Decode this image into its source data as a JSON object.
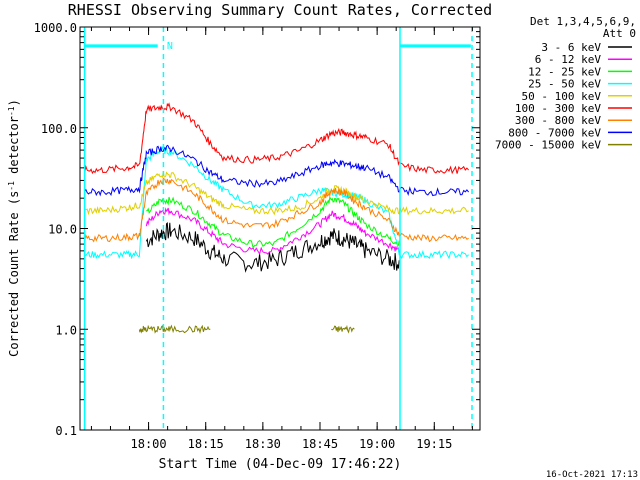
{
  "chart_data": {
    "type": "line",
    "title": "RHESSI Observing Summary Count Rates, Corrected",
    "ylabel": "Corrected Count Rate (s⁻¹ detector⁻¹)",
    "xlabel": "Start Time (04-Dec-09 17:46:22)",
    "timestamp": "16-Oct-2021 17:13",
    "yscale": "log",
    "ylim": [
      0.1,
      1000
    ],
    "xlim": [
      17.7,
      19.45
    ],
    "y_ticks": [
      {
        "v": 1000,
        "label": "1000.0"
      },
      {
        "v": 100,
        "label": "100.0"
      },
      {
        "v": 10,
        "label": "10.0"
      },
      {
        "v": 1,
        "label": "1.0"
      },
      {
        "v": 0.1,
        "label": "0.1"
      }
    ],
    "x_ticks": [
      {
        "v": 18.0,
        "label": "18:00"
      },
      {
        "v": 18.25,
        "label": "18:15"
      },
      {
        "v": 18.5,
        "label": "18:30"
      },
      {
        "v": 18.75,
        "label": "18:45"
      },
      {
        "v": 19.0,
        "label": "19:00"
      },
      {
        "v": 19.25,
        "label": "19:15"
      }
    ],
    "legend": {
      "position": "top-right",
      "header": [
        "Det 1,3,4,5,6,9,",
        "Att 0"
      ]
    },
    "annotations": [
      {
        "type": "vline",
        "x": 17.72,
        "color": "#00ffff",
        "style": "solid"
      },
      {
        "type": "vline",
        "x": 18.065,
        "color": "#00ffff",
        "style": "dashed"
      },
      {
        "type": "vline",
        "x": 19.1,
        "color": "#00ffff",
        "style": "solid"
      },
      {
        "type": "vline",
        "x": 19.415,
        "color": "#00ffff",
        "style": "dashed"
      },
      {
        "type": "hbar",
        "x1": 17.72,
        "x2": 18.04,
        "y": 650,
        "color": "#00ffff"
      },
      {
        "type": "hbar",
        "x1": 19.1,
        "x2": 19.41,
        "y": 650,
        "color": "#00ffff"
      },
      {
        "type": "text",
        "x": 18.08,
        "y": 650,
        "text": "N",
        "color": "#00ffff"
      }
    ],
    "x": [
      17.72,
      17.8,
      17.9,
      17.96,
      17.99,
      18.05,
      18.1,
      18.2,
      18.27,
      18.33,
      18.45,
      18.55,
      18.65,
      18.75,
      18.8,
      18.85,
      18.9,
      18.95,
      19.05,
      19.1,
      19.2,
      19.3,
      19.4
    ],
    "series": [
      {
        "name": "3 - 6 keV",
        "color": "#000000",
        "values": [
          null,
          null,
          null,
          null,
          7.5,
          9,
          9.5,
          8,
          6,
          5,
          4.5,
          4.8,
          6,
          7.5,
          8.5,
          8,
          7,
          6,
          5,
          4.5,
          null,
          null,
          null
        ]
      },
      {
        "name": "6 - 12 keV",
        "color": "#ff00ff",
        "values": [
          null,
          null,
          null,
          null,
          11,
          15,
          15,
          12,
          9,
          7,
          6,
          6,
          8,
          11,
          14,
          13,
          11,
          9,
          7,
          6,
          null,
          null,
          null
        ]
      },
      {
        "name": "12 - 25 keV",
        "color": "#00ff00",
        "values": [
          null,
          null,
          null,
          null,
          14,
          19,
          19,
          15,
          11,
          8.5,
          7,
          7,
          10,
          15,
          20,
          18,
          14,
          11,
          8,
          7,
          null,
          null,
          null
        ]
      },
      {
        "name": "25 - 50 keV",
        "color": "#00ffff",
        "values": [
          5.5,
          5.5,
          5.5,
          5.6,
          48,
          60,
          58,
          42,
          30,
          24,
          17,
          17,
          20,
          24,
          23,
          22,
          21,
          19,
          14,
          5.5,
          5.5,
          5.5,
          5.5
        ]
      },
      {
        "name": "50 - 100 keV",
        "color": "#e0d000",
        "values": [
          15,
          15,
          16,
          17,
          28,
          35,
          34,
          26,
          20,
          17,
          15,
          15,
          16,
          20,
          25,
          24,
          21,
          19,
          15.5,
          15,
          15,
          15,
          15
        ]
      },
      {
        "name": "100 - 300 keV",
        "color": "#ff0000",
        "values": [
          38,
          38,
          40,
          42,
          150,
          160,
          160,
          115,
          70,
          50,
          48,
          50,
          58,
          75,
          88,
          90,
          85,
          80,
          68,
          42,
          38,
          38,
          38
        ]
      },
      {
        "name": "300 - 800 keV",
        "color": "#ff8000",
        "values": [
          8,
          8,
          8.2,
          8.4,
          22,
          30,
          30,
          22,
          16,
          12,
          10.5,
          11,
          14,
          18,
          24,
          23,
          19,
          16,
          12,
          8.5,
          8,
          8,
          8
        ]
      },
      {
        "name": "800 - 7000 keV",
        "color": "#0000ff",
        "values": [
          23,
          23,
          24,
          25,
          55,
          62,
          62,
          48,
          36,
          30,
          28,
          28,
          34,
          42,
          45,
          44,
          42,
          40,
          32,
          24,
          23,
          23,
          23
        ]
      },
      {
        "name": "7000 - 15000 keV",
        "color": "#808000",
        "values": [
          null,
          null,
          null,
          1.0,
          1.0,
          1.0,
          1.0,
          1.0,
          1.0,
          null,
          null,
          null,
          null,
          null,
          1.0,
          1.0,
          1.0,
          null,
          null,
          null,
          null,
          null,
          null
        ]
      }
    ]
  }
}
